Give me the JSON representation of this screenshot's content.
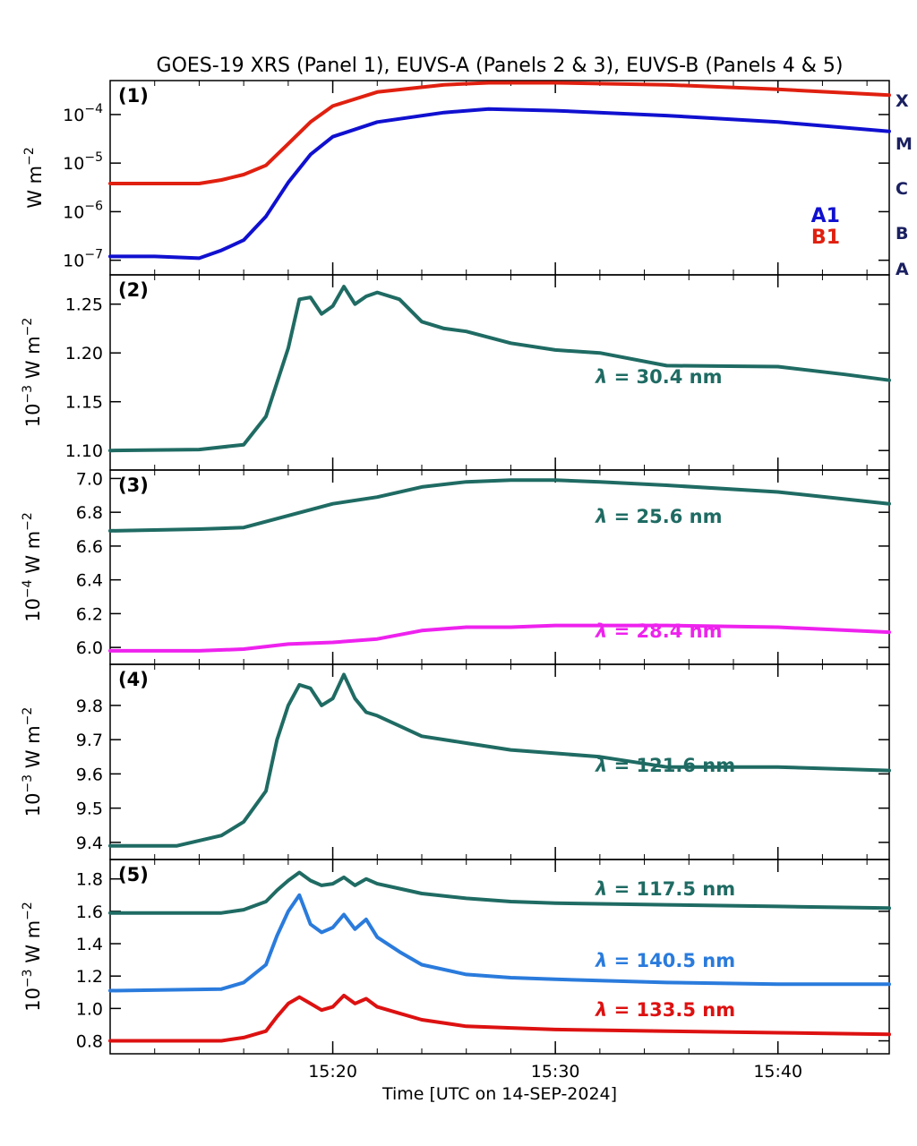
{
  "title": "GOES-19 XRS (Panel 1), EUVS-A (Panels 2 & 3), EUVS-B (Panels 4 & 5)",
  "xlabel": "Time [UTC on 14-SEP-2024]",
  "x_ticks": [
    "15:20",
    "15:30",
    "15:40"
  ],
  "chart_data": [
    {
      "type": "line",
      "panel": "(1)",
      "yscale": "log",
      "ylabel": "W m-2",
      "x": [
        "15:10",
        "15:12",
        "15:14",
        "15:15",
        "15:16",
        "15:17",
        "15:18",
        "15:19",
        "15:20",
        "15:22",
        "15:25",
        "15:27",
        "15:30",
        "15:35",
        "15:40",
        "15:45"
      ],
      "ylim": [
        5e-08,
        0.0005
      ],
      "yticks": [
        "10-7",
        "10-6",
        "10-5",
        "10-4"
      ],
      "flare_classes": [
        "X",
        "M",
        "C",
        "B",
        "A"
      ],
      "legend": [
        "A1",
        "B1"
      ],
      "colors": {
        "A1": "#1010d0",
        "B1": "#e02010"
      },
      "series": [
        {
          "name": "B1",
          "values": [
            3.8e-06,
            3.8e-06,
            3.8e-06,
            4.5e-06,
            5.8e-06,
            9e-06,
            2.5e-05,
            7e-05,
            0.00015,
            0.00029,
            0.00041,
            0.00045,
            0.00045,
            0.00041,
            0.00033,
            0.00025
          ]
        },
        {
          "name": "A1",
          "values": [
            1.2e-07,
            1.2e-07,
            1.1e-07,
            1.6e-07,
            2.6e-07,
            8e-07,
            4e-06,
            1.5e-05,
            3.5e-05,
            7e-05,
            0.00011,
            0.00013,
            0.00012,
            9.5e-05,
            7e-05,
            4.5e-05
          ]
        }
      ]
    },
    {
      "type": "line",
      "panel": "(2)",
      "ylabel": "10-3 W m-2",
      "ylim": [
        1.08,
        1.28
      ],
      "yticks": [
        "1.10",
        "1.15",
        "1.20",
        "1.25"
      ],
      "x": [
        "15:10",
        "15:14",
        "15:16",
        "15:17",
        "15:18",
        "15:18.5",
        "15:19",
        "15:19.5",
        "15:20",
        "15:20.5",
        "15:21",
        "15:21.5",
        "15:22",
        "15:23",
        "15:24",
        "15:25",
        "15:26",
        "15:28",
        "15:30",
        "15:32",
        "15:35",
        "15:40",
        "15:43",
        "15:45"
      ],
      "series": [
        {
          "name": "λ = 30.4 nm",
          "color": "#1f6b63",
          "values": [
            1.1,
            1.101,
            1.106,
            1.135,
            1.205,
            1.255,
            1.257,
            1.24,
            1.248,
            1.268,
            1.25,
            1.258,
            1.262,
            1.255,
            1.232,
            1.225,
            1.222,
            1.21,
            1.203,
            1.2,
            1.187,
            1.186,
            1.178,
            1.172
          ]
        }
      ]
    },
    {
      "type": "line",
      "panel": "(3)",
      "ylabel": "10-4 W m-2",
      "ylim": [
        5.9,
        7.05
      ],
      "yticks": [
        "6.0",
        "6.2",
        "6.4",
        "6.6",
        "6.8",
        "7.0"
      ],
      "x": [
        "15:10",
        "15:14",
        "15:16",
        "15:18",
        "15:20",
        "15:22",
        "15:24",
        "15:26",
        "15:28",
        "15:30",
        "15:32",
        "15:35",
        "15:40",
        "15:45"
      ],
      "series": [
        {
          "name": "λ = 25.6 nm",
          "color": "#1f6b63",
          "values": [
            6.69,
            6.7,
            6.71,
            6.78,
            6.85,
            6.89,
            6.95,
            6.98,
            6.99,
            6.99,
            6.98,
            6.96,
            6.92,
            6.85
          ]
        },
        {
          "name": "λ = 28.4 nm",
          "color": "#ee22ee",
          "values": [
            5.98,
            5.98,
            5.99,
            6.02,
            6.03,
            6.05,
            6.1,
            6.12,
            6.12,
            6.13,
            6.13,
            6.13,
            6.12,
            6.09
          ]
        }
      ]
    },
    {
      "type": "line",
      "panel": "(4)",
      "ylabel": "10-3 W m-2",
      "ylim": [
        9.35,
        9.92
      ],
      "yticks": [
        "9.4",
        "9.5",
        "9.6",
        "9.7",
        "9.8"
      ],
      "x": [
        "15:10",
        "15:13",
        "15:15",
        "15:16",
        "15:17",
        "15:17.5",
        "15:18",
        "15:18.5",
        "15:19",
        "15:19.5",
        "15:20",
        "15:20.5",
        "15:21",
        "15:21.5",
        "15:22",
        "15:23",
        "15:24",
        "15:26",
        "15:28",
        "15:30",
        "15:32",
        "15:35",
        "15:40",
        "15:45"
      ],
      "series": [
        {
          "name": "λ = 121.6 nm",
          "color": "#1f6b63",
          "values": [
            9.39,
            9.39,
            9.42,
            9.46,
            9.55,
            9.7,
            9.8,
            9.86,
            9.85,
            9.8,
            9.82,
            9.89,
            9.82,
            9.78,
            9.77,
            9.74,
            9.71,
            9.69,
            9.67,
            9.66,
            9.65,
            9.62,
            9.62,
            9.61
          ]
        }
      ]
    },
    {
      "type": "line",
      "panel": "(5)",
      "ylabel": "10-3 W m-2",
      "ylim": [
        0.72,
        1.92
      ],
      "yticks": [
        "0.8",
        "1.0",
        "1.2",
        "1.4",
        "1.6",
        "1.8"
      ],
      "x": [
        "15:10",
        "15:15",
        "15:16",
        "15:17",
        "15:17.5",
        "15:18",
        "15:18.5",
        "15:19",
        "15:19.5",
        "15:20",
        "15:20.5",
        "15:21",
        "15:21.5",
        "15:22",
        "15:23",
        "15:24",
        "15:26",
        "15:28",
        "15:30",
        "15:35",
        "15:40",
        "15:45"
      ],
      "series": [
        {
          "name": "λ = 117.5 nm",
          "color": "#1f6b63",
          "values": [
            1.59,
            1.59,
            1.61,
            1.66,
            1.73,
            1.79,
            1.84,
            1.79,
            1.76,
            1.77,
            1.81,
            1.76,
            1.8,
            1.77,
            1.74,
            1.71,
            1.68,
            1.66,
            1.65,
            1.64,
            1.63,
            1.62
          ]
        },
        {
          "name": "λ = 140.5 nm",
          "color": "#2a7bdc",
          "values": [
            1.11,
            1.12,
            1.16,
            1.27,
            1.45,
            1.6,
            1.7,
            1.52,
            1.47,
            1.5,
            1.58,
            1.49,
            1.55,
            1.44,
            1.35,
            1.27,
            1.21,
            1.19,
            1.18,
            1.16,
            1.15,
            1.15
          ]
        },
        {
          "name": "λ = 133.5 nm",
          "color": "#dd1111",
          "values": [
            0.8,
            0.8,
            0.82,
            0.86,
            0.95,
            1.03,
            1.07,
            1.03,
            0.99,
            1.01,
            1.08,
            1.03,
            1.06,
            1.01,
            0.97,
            0.93,
            0.89,
            0.88,
            0.87,
            0.86,
            0.85,
            0.84
          ]
        }
      ]
    }
  ]
}
